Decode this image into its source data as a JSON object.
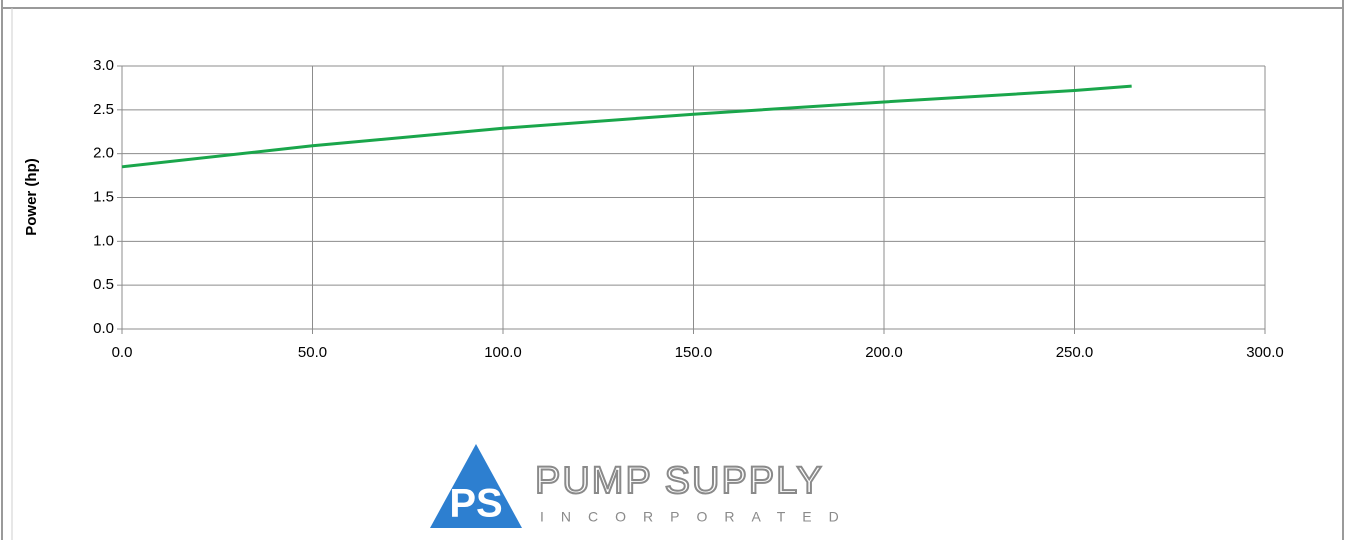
{
  "chart_data": {
    "type": "line",
    "y_label": "Power (hp)",
    "x": [
      0,
      50,
      100,
      150,
      200,
      250,
      265
    ],
    "series": [
      {
        "color": "#1aa64b",
        "values": [
          1.85,
          2.09,
          2.29,
          2.45,
          2.59,
          2.72,
          2.77
        ]
      }
    ],
    "xlim": [
      0,
      300
    ],
    "xticks": [
      {
        "value": 0,
        "label": "0.0"
      },
      {
        "value": 50,
        "label": "50.0"
      },
      {
        "value": 100,
        "label": "100.0"
      },
      {
        "value": 150,
        "label": "150.0"
      },
      {
        "value": 200,
        "label": "200.0"
      },
      {
        "value": 250,
        "label": "250.0"
      },
      {
        "value": 300,
        "label": "300.0"
      }
    ],
    "ylim": [
      0,
      3
    ],
    "yticks": [
      {
        "value": 0,
        "label": "0.0"
      },
      {
        "value": 0.5,
        "label": "0.5"
      },
      {
        "value": 1,
        "label": "1.0"
      },
      {
        "value": 1.5,
        "label": "1.5"
      },
      {
        "value": 2,
        "label": "2.0"
      },
      {
        "value": 2.5,
        "label": "2.5"
      },
      {
        "value": 3,
        "label": "3.0"
      }
    ],
    "grid": true
  },
  "logo": {
    "initials": "PS",
    "name": "PUMP SUPPLY",
    "tagline": "INCORPORATED"
  }
}
